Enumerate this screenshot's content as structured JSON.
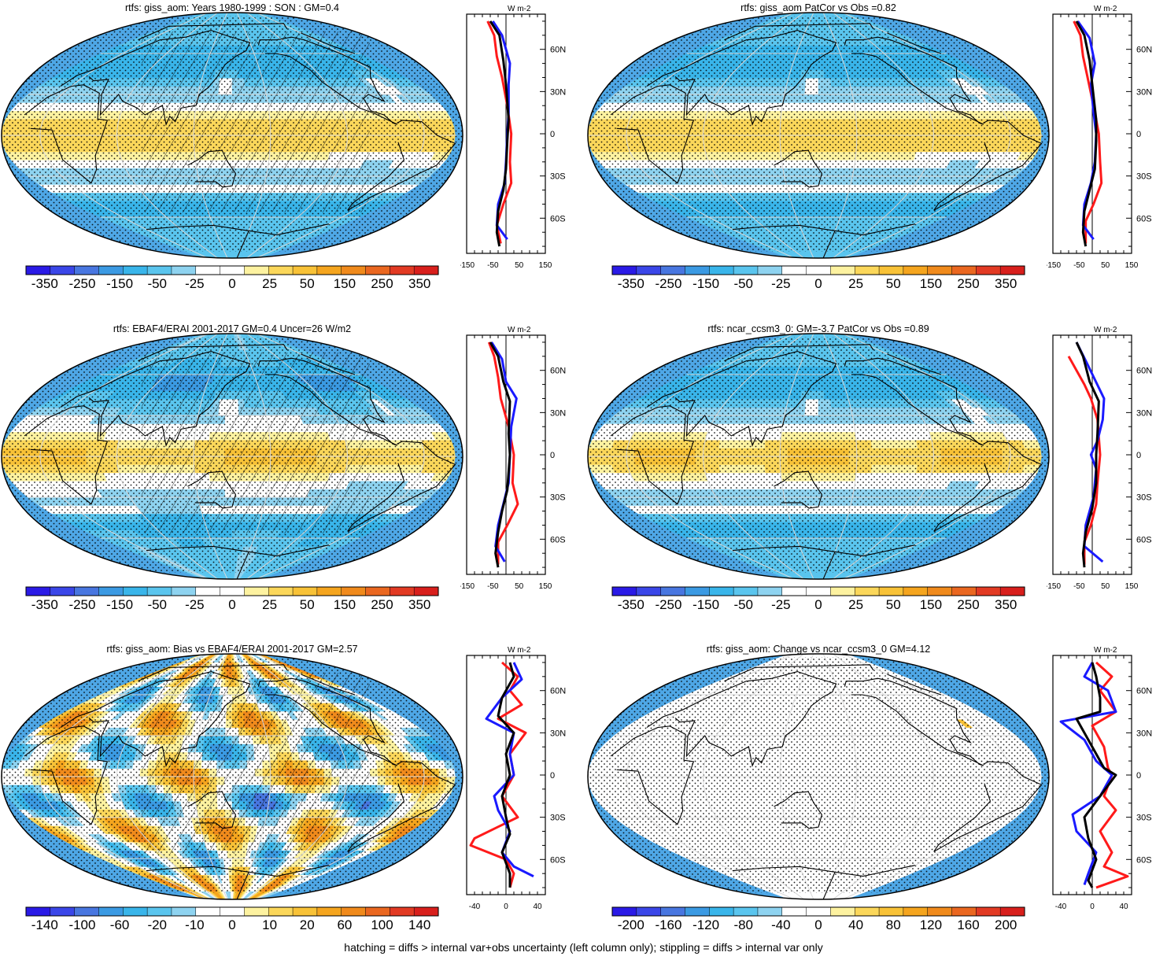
{
  "panels": [
    {
      "id": "p1",
      "title": "rtfs: giss_aom: Years 1980-1999 : SON : GM=0.4",
      "hatched": true,
      "colorbar_labels": [
        "-350",
        "-250",
        "-150",
        "-50",
        "-25",
        "0",
        "25",
        "50",
        "150",
        "250",
        "350"
      ],
      "profile_unit": "W m-2",
      "profile_xticks": [
        "-150",
        "-50",
        "50",
        "150"
      ],
      "profile_yticks": [
        "60N",
        "30N",
        "0",
        "30S",
        "60S"
      ],
      "profile_xrange": [
        -150,
        150
      ],
      "profile_lines": {
        "red": [
          [
            -70,
            80
          ],
          [
            -45,
            70
          ],
          [
            -35,
            55
          ],
          [
            -15,
            40
          ],
          [
            5,
            20
          ],
          [
            20,
            0
          ],
          [
            15,
            -20
          ],
          [
            20,
            -35
          ],
          [
            -10,
            -50
          ],
          [
            -35,
            -65
          ],
          [
            -20,
            -78
          ]
        ],
        "blue": [
          [
            -50,
            80
          ],
          [
            -15,
            70
          ],
          [
            15,
            50
          ],
          [
            10,
            35
          ],
          [
            10,
            15
          ],
          [
            5,
            0
          ],
          [
            0,
            -20
          ],
          [
            -5,
            -35
          ],
          [
            -30,
            -50
          ],
          [
            -35,
            -65
          ],
          [
            5,
            -75
          ]
        ],
        "black": [
          [
            -60,
            80
          ],
          [
            -25,
            70
          ],
          [
            -10,
            52
          ],
          [
            0,
            35
          ],
          [
            10,
            10
          ],
          [
            5,
            -5
          ],
          [
            0,
            -25
          ],
          [
            -10,
            -40
          ],
          [
            -30,
            -55
          ],
          [
            -35,
            -70
          ],
          [
            -25,
            -80
          ]
        ]
      }
    },
    {
      "id": "p2",
      "title": "rtfs: giss_aom PatCor vs Obs =0.82",
      "hatched": false,
      "colorbar_labels": [
        "-350",
        "-250",
        "-150",
        "-50",
        "-25",
        "0",
        "25",
        "50",
        "150",
        "250",
        "350"
      ],
      "profile_unit": "W m-2",
      "profile_xticks": [
        "-150",
        "-50",
        "50",
        "150"
      ],
      "profile_yticks": [
        "60N",
        "30N",
        "0",
        "30S",
        "60S"
      ],
      "profile_xrange": [
        -150,
        150
      ],
      "profile_lines": {
        "red": [
          [
            -70,
            80
          ],
          [
            -45,
            70
          ],
          [
            -35,
            55
          ],
          [
            -20,
            42
          ],
          [
            5,
            20
          ],
          [
            25,
            0
          ],
          [
            30,
            -20
          ],
          [
            35,
            -35
          ],
          [
            5,
            -50
          ],
          [
            -25,
            -62
          ],
          [
            -25,
            -78
          ]
        ],
        "blue": [
          [
            -55,
            80
          ],
          [
            -10,
            68
          ],
          [
            10,
            50
          ],
          [
            -5,
            35
          ],
          [
            5,
            15
          ],
          [
            15,
            0
          ],
          [
            10,
            -20
          ],
          [
            -5,
            -35
          ],
          [
            -30,
            -50
          ],
          [
            -35,
            -65
          ],
          [
            5,
            -75
          ]
        ],
        "black": [
          [
            -60,
            80
          ],
          [
            -30,
            70
          ],
          [
            -10,
            52
          ],
          [
            0,
            35
          ],
          [
            15,
            10
          ],
          [
            15,
            -5
          ],
          [
            10,
            -25
          ],
          [
            -10,
            -40
          ],
          [
            -30,
            -55
          ],
          [
            -35,
            -70
          ],
          [
            -25,
            -80
          ]
        ]
      }
    },
    {
      "id": "p3",
      "title": "rtfs: EBAF4/ERAI 2001-2017 GM=0.4 Uncer=26 W/m2",
      "hatched": true,
      "colorbar_labels": [
        "-350",
        "-250",
        "-150",
        "-50",
        "-25",
        "0",
        "25",
        "50",
        "150",
        "250",
        "350"
      ],
      "profile_unit": "W m-2",
      "profile_xticks": [
        "-150",
        "-50",
        "50",
        "150"
      ],
      "profile_yticks": [
        "60N",
        "30N",
        "0",
        "30S",
        "60S"
      ],
      "profile_xrange": [
        -150,
        150
      ],
      "profile_lines": {
        "red": [
          [
            -65,
            80
          ],
          [
            -45,
            70
          ],
          [
            -30,
            55
          ],
          [
            -20,
            40
          ],
          [
            10,
            20
          ],
          [
            30,
            0
          ],
          [
            25,
            -20
          ],
          [
            45,
            -35
          ],
          [
            5,
            -50
          ],
          [
            -30,
            -62
          ],
          [
            -30,
            -78
          ]
        ],
        "blue": [
          [
            -55,
            80
          ],
          [
            -15,
            68
          ],
          [
            0,
            52
          ],
          [
            40,
            40
          ],
          [
            20,
            20
          ],
          [
            15,
            0
          ],
          [
            10,
            -20
          ],
          [
            -10,
            -35
          ],
          [
            -30,
            -50
          ],
          [
            -40,
            -65
          ],
          [
            -5,
            -76
          ]
        ],
        "black": [
          [
            -60,
            80
          ],
          [
            -30,
            70
          ],
          [
            -10,
            52
          ],
          [
            15,
            38
          ],
          [
            10,
            15
          ],
          [
            15,
            0
          ],
          [
            5,
            -25
          ],
          [
            -15,
            -40
          ],
          [
            -30,
            -55
          ],
          [
            -40,
            -70
          ],
          [
            -30,
            -80
          ]
        ]
      }
    },
    {
      "id": "p4",
      "title": "rtfs: ncar_ccsm3_0: GM=-3.7 PatCor vs Obs =0.89",
      "hatched": false,
      "colorbar_labels": [
        "-350",
        "-250",
        "-150",
        "-50",
        "-25",
        "0",
        "25",
        "50",
        "150",
        "250",
        "350"
      ],
      "profile_unit": "W m-2",
      "profile_xticks": [
        "-150",
        "-50",
        "50",
        "150"
      ],
      "profile_yticks": [
        "60N",
        "30N",
        "0",
        "30S",
        "60S"
      ],
      "profile_xrange": [
        -150,
        150
      ],
      "profile_lines": {
        "red": [
          [
            -90,
            70
          ],
          [
            -60,
            60
          ],
          [
            -30,
            50
          ],
          [
            -5,
            40
          ],
          [
            20,
            25
          ],
          [
            30,
            0
          ],
          [
            20,
            -20
          ],
          [
            15,
            -35
          ],
          [
            -5,
            -50
          ],
          [
            -30,
            -62
          ],
          [
            -30,
            -78
          ]
        ],
        "blue": [
          [
            -60,
            80
          ],
          [
            -20,
            65
          ],
          [
            45,
            40
          ],
          [
            40,
            25
          ],
          [
            20,
            10
          ],
          [
            -5,
            0
          ],
          [
            15,
            -10
          ],
          [
            5,
            -30
          ],
          [
            -25,
            -50
          ],
          [
            -30,
            -65
          ],
          [
            40,
            -76
          ]
        ],
        "black": [
          [
            -60,
            80
          ],
          [
            -35,
            70
          ],
          [
            -10,
            52
          ],
          [
            25,
            38
          ],
          [
            20,
            15
          ],
          [
            15,
            0
          ],
          [
            15,
            -20
          ],
          [
            0,
            -38
          ],
          [
            -25,
            -55
          ],
          [
            -35,
            -70
          ],
          [
            -30,
            -80
          ]
        ]
      }
    },
    {
      "id": "p5",
      "title": "rtfs: giss_aom: Bias vs EBAF4/ERAI 2001-2017  GM=2.57",
      "hatched": true,
      "colorbar_labels": [
        "-140",
        "-100",
        "-60",
        "-20",
        "-10",
        "0",
        "10",
        "20",
        "60",
        "100",
        "140"
      ],
      "profile_unit": "W m-2",
      "profile_xticks": [
        "-40",
        "0",
        "40"
      ],
      "profile_yticks": [
        "60N",
        "30N",
        "0",
        "30S",
        "60S"
      ],
      "profile_xrange": [
        -50,
        50
      ],
      "profile_lines": {
        "red": [
          [
            -5,
            80
          ],
          [
            15,
            70
          ],
          [
            5,
            60
          ],
          [
            20,
            50
          ],
          [
            -10,
            40
          ],
          [
            25,
            30
          ],
          [
            5,
            15
          ],
          [
            10,
            0
          ],
          [
            -5,
            -15
          ],
          [
            15,
            -30
          ],
          [
            -40,
            -45
          ],
          [
            -45,
            -50
          ],
          [
            0,
            -60
          ],
          [
            10,
            -70
          ],
          [
            5,
            -80
          ]
        ],
        "blue": [
          [
            10,
            80
          ],
          [
            20,
            68
          ],
          [
            -5,
            55
          ],
          [
            -25,
            40
          ],
          [
            10,
            30
          ],
          [
            5,
            15
          ],
          [
            10,
            0
          ],
          [
            -15,
            -15
          ],
          [
            -10,
            -25
          ],
          [
            5,
            -40
          ],
          [
            -5,
            -55
          ],
          [
            10,
            -65
          ],
          [
            35,
            -72
          ]
        ],
        "black": [
          [
            5,
            80
          ],
          [
            10,
            70
          ],
          [
            -5,
            55
          ],
          [
            -10,
            42
          ],
          [
            10,
            30
          ],
          [
            0,
            15
          ],
          [
            5,
            0
          ],
          [
            -5,
            -15
          ],
          [
            0,
            -30
          ],
          [
            5,
            -42
          ],
          [
            -5,
            -55
          ],
          [
            5,
            -70
          ],
          [
            5,
            -80
          ]
        ]
      }
    },
    {
      "id": "p6",
      "title": "rtfs: giss_aom: Change vs ncar_ccsm3_0 GM=4.12",
      "hatched": false,
      "colorbar_labels": [
        "-200",
        "-160",
        "-120",
        "-80",
        "-40",
        "0",
        "40",
        "80",
        "120",
        "160",
        "200"
      ],
      "profile_unit": "W m-2",
      "profile_xticks": [
        "-40",
        "0",
        "40"
      ],
      "profile_yticks": [
        "60N",
        "30N",
        "0",
        "30S",
        "60S"
      ],
      "profile_xrange": [
        -50,
        50
      ],
      "profile_lines": {
        "red": [
          [
            5,
            80
          ],
          [
            25,
            70
          ],
          [
            10,
            60
          ],
          [
            30,
            45
          ],
          [
            0,
            35
          ],
          [
            15,
            20
          ],
          [
            20,
            5
          ],
          [
            25,
            0
          ],
          [
            15,
            -15
          ],
          [
            30,
            -25
          ],
          [
            10,
            -40
          ],
          [
            25,
            -55
          ],
          [
            15,
            -65
          ],
          [
            45,
            -72
          ],
          [
            5,
            -80
          ]
        ],
        "blue": [
          [
            0,
            80
          ],
          [
            -10,
            70
          ],
          [
            20,
            60
          ],
          [
            30,
            45
          ],
          [
            -40,
            38
          ],
          [
            -10,
            25
          ],
          [
            5,
            10
          ],
          [
            25,
            0
          ],
          [
            10,
            -15
          ],
          [
            -25,
            -28
          ],
          [
            -20,
            -40
          ],
          [
            5,
            -55
          ],
          [
            -5,
            -70
          ],
          [
            -10,
            -78
          ]
        ],
        "black": [
          [
            0,
            80
          ],
          [
            5,
            70
          ],
          [
            10,
            55
          ],
          [
            10,
            45
          ],
          [
            -20,
            40
          ],
          [
            -5,
            25
          ],
          [
            15,
            5
          ],
          [
            30,
            0
          ],
          [
            10,
            -15
          ],
          [
            -10,
            -30
          ],
          [
            -5,
            -45
          ],
          [
            5,
            -60
          ],
          [
            -5,
            -75
          ],
          [
            0,
            -80
          ]
        ]
      }
    }
  ],
  "footnote": "hatching = diffs > internal var+obs uncertainty (left column only); stippling = diffs > internal var only",
  "colors": {
    "scale": [
      "#2a1ae6",
      "#3a46e8",
      "#4876e0",
      "#3b9ae3",
      "#39b5ea",
      "#5ac5ee",
      "#8ed3f0",
      "#ffffff",
      "#ffffff",
      "#fdf2a0",
      "#fbd75a",
      "#f8c237",
      "#f5a51e",
      "#f08a1c",
      "#ea6720",
      "#e23a23",
      "#d81f1c"
    ],
    "ocean_default": "#4ea7e6",
    "land": "#f2b43a",
    "profile_red": "#ff1a1a",
    "profile_blue": "#1a1aff",
    "profile_black": "#000000"
  }
}
